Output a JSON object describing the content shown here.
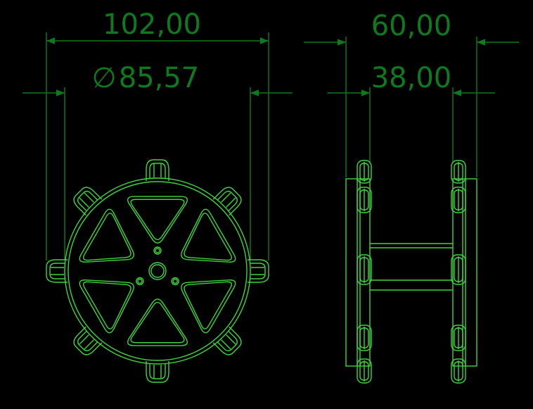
{
  "drawing": {
    "background": "#000000",
    "dimension_color": "#0e7a1e",
    "geometry_color": "#3cd63c"
  },
  "dimensions": {
    "overall_width": "102,00",
    "pitch_diameter_symbol": "∅",
    "pitch_diameter": "85,57",
    "overall_depth": "60,00",
    "hub_length": "38,00"
  }
}
